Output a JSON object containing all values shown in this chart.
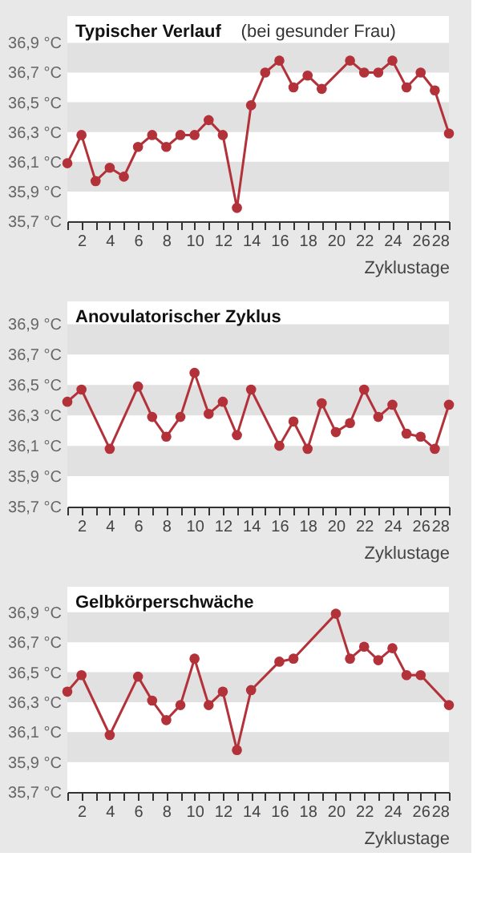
{
  "chart_data": [
    {
      "type": "line",
      "title": "Typischer Verlauf",
      "subtitle": "(bei gesunder Frau)",
      "xlabel": "Zyklustage",
      "marker": "circle",
      "line_style": "solid",
      "grid": false,
      "xlim": [
        1,
        28
      ],
      "ylim": [
        35.7,
        37.08
      ],
      "xticks": [
        {
          "value": 1,
          "label": null
        },
        2,
        {
          "value": 3,
          "label": null
        },
        4,
        {
          "value": 5,
          "label": null
        },
        6,
        {
          "value": 7,
          "label": null
        },
        8,
        {
          "value": 9,
          "label": null
        },
        10,
        {
          "value": 11,
          "label": null
        },
        12,
        {
          "value": 13,
          "label": null
        },
        14,
        {
          "value": 15,
          "label": null
        },
        16,
        {
          "value": 17,
          "label": null
        },
        18,
        {
          "value": 19,
          "label": null
        },
        20,
        {
          "value": 21,
          "label": null
        },
        22,
        {
          "value": 23,
          "label": null
        },
        24,
        {
          "value": 25,
          "label": null
        },
        26,
        {
          "value": 27,
          "label": null
        },
        28
      ],
      "yticks": [
        {
          "value": 35.7,
          "label": "35,7 °C"
        },
        {
          "value": 35.9,
          "label": "35,9 °C"
        },
        {
          "value": 36.1,
          "label": "36,1 °C"
        },
        {
          "value": 36.3,
          "label": "36,3 °C"
        },
        {
          "value": 36.5,
          "label": "36,5 °C"
        },
        {
          "value": 36.7,
          "label": "36,7 °C"
        },
        {
          "value": 36.9,
          "label": "36,9 °C"
        }
      ],
      "bands": [
        {
          "axis": "y",
          "from": 35.9,
          "to": 36.1,
          "color": "#e1e1e1"
        },
        {
          "axis": "y",
          "from": 36.3,
          "to": 36.5,
          "color": "#e1e1e1"
        },
        {
          "axis": "y",
          "from": 36.7,
          "to": 36.9,
          "color": "#e1e1e1"
        }
      ],
      "series": [
        {
          "color": "#b3323a",
          "x": [
            1,
            2,
            3,
            4,
            5,
            6,
            7,
            8,
            9,
            10,
            11,
            12,
            13,
            14,
            15,
            16,
            17,
            18,
            19,
            21,
            22,
            23,
            24,
            25,
            26,
            27,
            28
          ],
          "values": [
            36.09,
            36.28,
            35.97,
            36.06,
            36.0,
            36.2,
            36.28,
            36.2,
            36.28,
            36.28,
            36.38,
            36.28,
            35.79,
            36.48,
            36.7,
            36.78,
            36.6,
            36.68,
            36.59,
            36.78,
            36.7,
            36.7,
            36.78,
            36.6,
            36.7,
            36.58,
            36.29
          ]
        }
      ]
    },
    {
      "type": "line",
      "title": "Anovulatorischer Zyklus",
      "xlabel": "Zyklustage",
      "marker": "circle",
      "line_style": "solid",
      "grid": false,
      "xlim": [
        1,
        28
      ],
      "ylim": [
        35.7,
        37.05
      ],
      "xticks": [
        {
          "value": 1,
          "label": null
        },
        2,
        {
          "value": 3,
          "label": null
        },
        4,
        {
          "value": 5,
          "label": null
        },
        6,
        {
          "value": 7,
          "label": null
        },
        8,
        {
          "value": 9,
          "label": null
        },
        10,
        {
          "value": 11,
          "label": null
        },
        12,
        {
          "value": 13,
          "label": null
        },
        14,
        {
          "value": 15,
          "label": null
        },
        16,
        {
          "value": 17,
          "label": null
        },
        18,
        {
          "value": 19,
          "label": null
        },
        20,
        {
          "value": 21,
          "label": null
        },
        22,
        {
          "value": 23,
          "label": null
        },
        24,
        {
          "value": 25,
          "label": null
        },
        26,
        {
          "value": 27,
          "label": null
        },
        28
      ],
      "yticks": [
        {
          "value": 35.7,
          "label": "35,7 °C"
        },
        {
          "value": 35.9,
          "label": "35,9 °C"
        },
        {
          "value": 36.1,
          "label": "36,1 °C"
        },
        {
          "value": 36.3,
          "label": "36,3 °C"
        },
        {
          "value": 36.5,
          "label": "36,5 °C"
        },
        {
          "value": 36.7,
          "label": "36,7 °C"
        },
        {
          "value": 36.9,
          "label": "36,9 °C"
        }
      ],
      "bands": [
        {
          "axis": "y",
          "from": 35.9,
          "to": 36.1,
          "color": "#e1e1e1"
        },
        {
          "axis": "y",
          "from": 36.3,
          "to": 36.5,
          "color": "#e1e1e1"
        },
        {
          "axis": "y",
          "from": 36.7,
          "to": 36.9,
          "color": "#e1e1e1"
        }
      ],
      "series": [
        {
          "color": "#b3323a",
          "x": [
            1,
            2,
            4,
            6,
            7,
            8,
            9,
            10,
            11,
            12,
            13,
            14,
            16,
            17,
            18,
            19,
            20,
            21,
            22,
            23,
            24,
            25,
            26,
            27,
            28
          ],
          "values": [
            36.39,
            36.47,
            36.08,
            36.49,
            36.29,
            36.16,
            36.29,
            36.58,
            36.31,
            36.39,
            36.17,
            36.47,
            36.1,
            36.26,
            36.08,
            36.38,
            36.19,
            36.25,
            36.47,
            36.29,
            36.37,
            36.18,
            36.16,
            36.08,
            36.37
          ]
        }
      ]
    },
    {
      "type": "line",
      "title": "Gelbkörperschwäche",
      "xlabel": "Zyklustage",
      "marker": "circle",
      "line_style": "solid",
      "grid": false,
      "xlim": [
        1,
        28
      ],
      "ylim": [
        35.7,
        37.07
      ],
      "xticks": [
        {
          "value": 1,
          "label": null
        },
        2,
        {
          "value": 3,
          "label": null
        },
        4,
        {
          "value": 5,
          "label": null
        },
        6,
        {
          "value": 7,
          "label": null
        },
        8,
        {
          "value": 9,
          "label": null
        },
        10,
        {
          "value": 11,
          "label": null
        },
        12,
        {
          "value": 13,
          "label": null
        },
        14,
        {
          "value": 15,
          "label": null
        },
        16,
        {
          "value": 17,
          "label": null
        },
        18,
        {
          "value": 19,
          "label": null
        },
        20,
        {
          "value": 21,
          "label": null
        },
        22,
        {
          "value": 23,
          "label": null
        },
        24,
        {
          "value": 25,
          "label": null
        },
        26,
        {
          "value": 27,
          "label": null
        },
        28
      ],
      "yticks": [
        {
          "value": 35.7,
          "label": "35,7 °C"
        },
        {
          "value": 35.9,
          "label": "35,9 °C"
        },
        {
          "value": 36.1,
          "label": "36,1 °C"
        },
        {
          "value": 36.3,
          "label": "36,3 °C"
        },
        {
          "value": 36.5,
          "label": "36,5 °C"
        },
        {
          "value": 36.7,
          "label": "36,7 °C"
        },
        {
          "value": 36.9,
          "label": "36,9 °C"
        }
      ],
      "bands": [
        {
          "axis": "y",
          "from": 35.9,
          "to": 36.1,
          "color": "#e1e1e1"
        },
        {
          "axis": "y",
          "from": 36.3,
          "to": 36.5,
          "color": "#e1e1e1"
        },
        {
          "axis": "y",
          "from": 36.7,
          "to": 36.9,
          "color": "#e1e1e1"
        }
      ],
      "series": [
        {
          "color": "#b3323a",
          "x": [
            1,
            2,
            4,
            6,
            7,
            8,
            9,
            10,
            11,
            12,
            13,
            14,
            16,
            17,
            20,
            21,
            22,
            23,
            24,
            25,
            26,
            28
          ],
          "values": [
            36.37,
            36.48,
            36.08,
            36.47,
            36.31,
            36.18,
            36.28,
            36.59,
            36.28,
            36.37,
            35.98,
            36.38,
            36.57,
            36.59,
            36.89,
            36.59,
            36.67,
            36.58,
            36.66,
            36.48,
            36.48,
            36.28
          ]
        }
      ]
    }
  ]
}
